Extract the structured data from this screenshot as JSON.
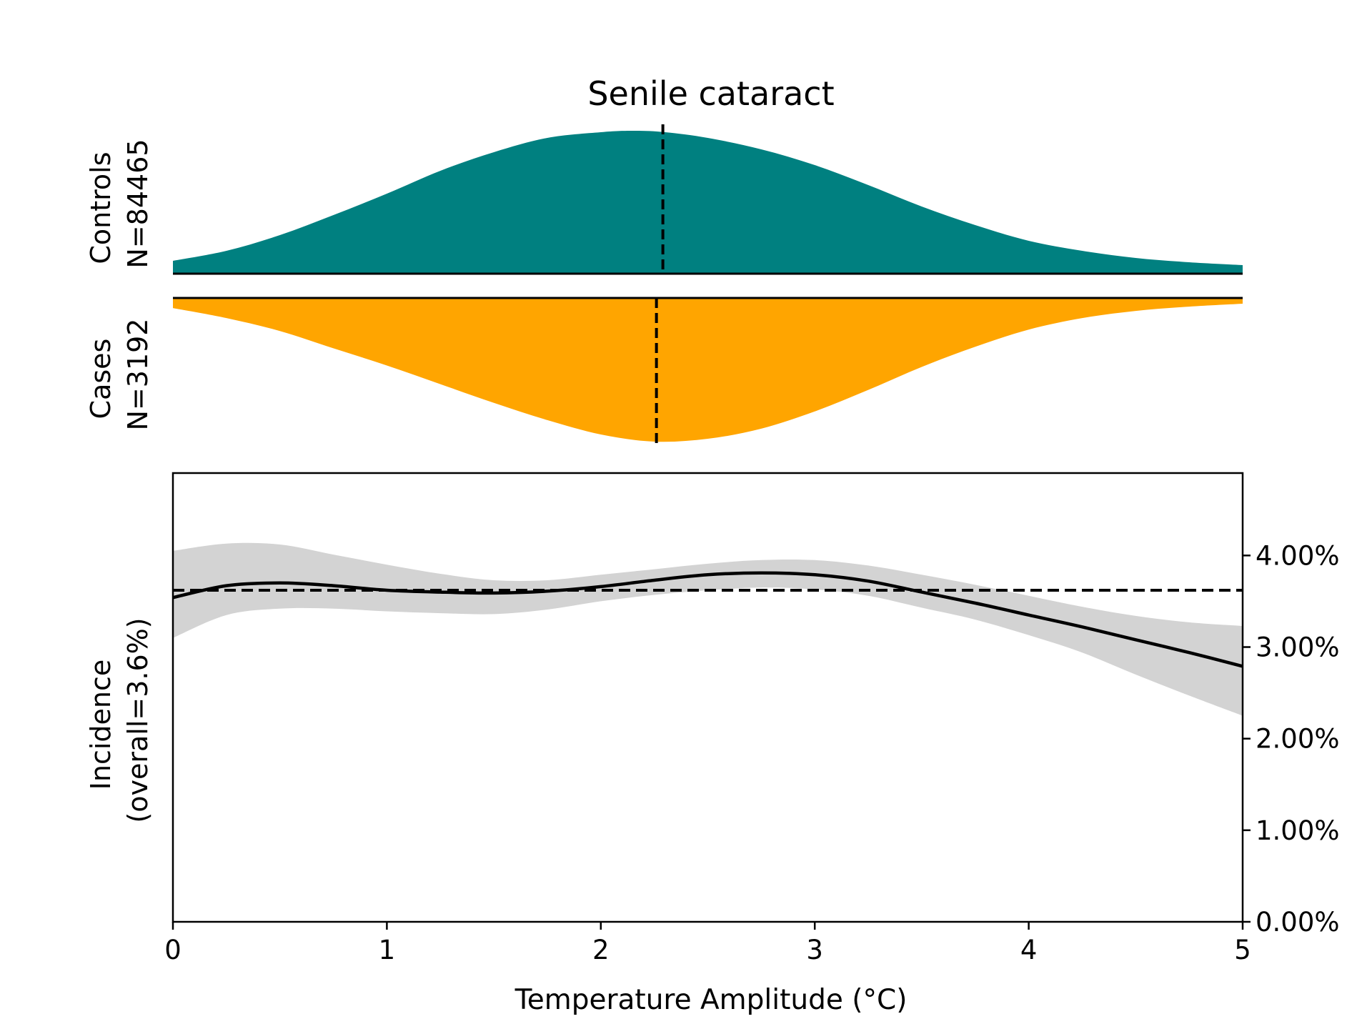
{
  "chart_data": {
    "type": "area",
    "title": "Senile cataract",
    "xlabel": "Temperature Amplitude (°C)",
    "xlim": [
      0,
      5
    ],
    "x_ticks": [
      "0",
      "1",
      "2",
      "3",
      "4",
      "5"
    ],
    "distributions": {
      "controls": {
        "label_line1": "Controls",
        "label_line2": "N=84465",
        "color": "#008080",
        "median": 2.29,
        "x": [
          0,
          0.25,
          0.5,
          0.75,
          1.0,
          1.25,
          1.5,
          1.75,
          2.0,
          2.15,
          2.3,
          2.5,
          2.75,
          3.0,
          3.25,
          3.5,
          3.75,
          4.0,
          4.25,
          4.5,
          4.75,
          5.0
        ],
        "density": [
          0.09,
          0.16,
          0.27,
          0.41,
          0.56,
          0.72,
          0.85,
          0.95,
          0.99,
          1.0,
          0.99,
          0.95,
          0.87,
          0.76,
          0.62,
          0.47,
          0.34,
          0.23,
          0.16,
          0.11,
          0.08,
          0.06
        ]
      },
      "cases": {
        "label_line1": "Cases",
        "label_line2": "N=3192",
        "color": "#FFA500",
        "median": 2.26,
        "x": [
          0,
          0.25,
          0.5,
          0.75,
          1.0,
          1.25,
          1.5,
          1.75,
          2.0,
          2.25,
          2.5,
          2.75,
          3.0,
          3.25,
          3.5,
          3.75,
          4.0,
          4.25,
          4.5,
          4.75,
          5.0
        ],
        "density": [
          0.07,
          0.14,
          0.23,
          0.35,
          0.47,
          0.6,
          0.73,
          0.85,
          0.95,
          1.0,
          0.98,
          0.91,
          0.79,
          0.64,
          0.48,
          0.34,
          0.22,
          0.14,
          0.09,
          0.06,
          0.04
        ]
      }
    },
    "incidence": {
      "ylabel_line1": "Incidence",
      "ylabel_line2": "(overall=3.6%)",
      "ylim": [
        0,
        0.049
      ],
      "y_ticks": [
        {
          "value": 0.0,
          "label": "0.00%"
        },
        {
          "value": 0.01,
          "label": "1.00%"
        },
        {
          "value": 0.02,
          "label": "2.00%"
        },
        {
          "value": 0.03,
          "label": "3.00%"
        },
        {
          "value": 0.04,
          "label": "4.00%"
        }
      ],
      "overall": 0.0362,
      "line_color": "#000000",
      "band_color": "#d3d3d3",
      "x": [
        0,
        0.25,
        0.5,
        0.75,
        1.0,
        1.25,
        1.5,
        1.75,
        2.0,
        2.25,
        2.5,
        2.75,
        3.0,
        3.25,
        3.5,
        3.75,
        4.0,
        4.25,
        4.5,
        4.75,
        5.0
      ],
      "mean": [
        0.0354,
        0.0367,
        0.037,
        0.0367,
        0.0362,
        0.036,
        0.0359,
        0.0361,
        0.0366,
        0.0373,
        0.0379,
        0.0381,
        0.0379,
        0.0372,
        0.036,
        0.0348,
        0.0335,
        0.0322,
        0.0308,
        0.0294,
        0.0279
      ],
      "upper": [
        0.0405,
        0.0413,
        0.0412,
        0.0401,
        0.039,
        0.038,
        0.0373,
        0.0373,
        0.0379,
        0.0385,
        0.0391,
        0.0395,
        0.0395,
        0.0389,
        0.0379,
        0.0368,
        0.0356,
        0.0344,
        0.0334,
        0.0327,
        0.0323
      ],
      "lower": [
        0.031,
        0.0335,
        0.0342,
        0.0342,
        0.0339,
        0.0337,
        0.0336,
        0.0341,
        0.035,
        0.0357,
        0.0362,
        0.0365,
        0.0363,
        0.0356,
        0.0343,
        0.033,
        0.0313,
        0.0294,
        0.027,
        0.0247,
        0.0225
      ]
    }
  }
}
